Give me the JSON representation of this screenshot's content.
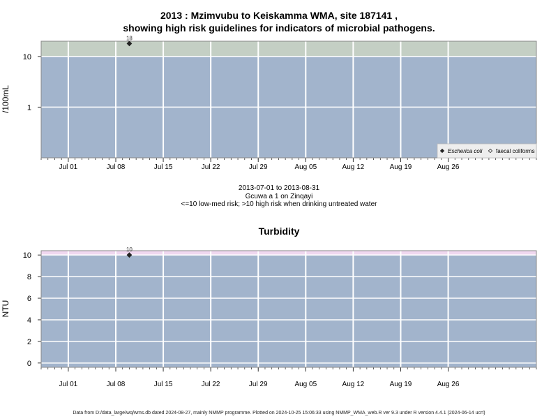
{
  "chart_data": [
    {
      "type": "scatter",
      "title_line1": "2013 : Mzimvubu to Keiskamma WMA, site 187141 ,",
      "title_line2": "showing high risk guidelines for indicators of microbial pathogens.",
      "ylabel": "/100mL",
      "y_scale": "log",
      "ylim": [
        0.1,
        20
      ],
      "yticks": [
        {
          "value": 1,
          "label": "1"
        },
        {
          "value": 10,
          "label": "10"
        }
      ],
      "xlim": [
        "2013-06-27",
        "2013-09-08"
      ],
      "xticks": [
        {
          "date": "2013-07-01",
          "label": "Jul 01"
        },
        {
          "date": "2013-07-08",
          "label": "Jul 08"
        },
        {
          "date": "2013-07-15",
          "label": "Jul 15"
        },
        {
          "date": "2013-07-22",
          "label": "Jul 22"
        },
        {
          "date": "2013-07-29",
          "label": "Jul 29"
        },
        {
          "date": "2013-08-05",
          "label": "Aug 05"
        },
        {
          "date": "2013-08-12",
          "label": "Aug 12"
        },
        {
          "date": "2013-08-19",
          "label": "Aug 19"
        },
        {
          "date": "2013-08-26",
          "label": "Aug 26"
        }
      ],
      "bands": [
        {
          "from": 0.1,
          "to": 10,
          "color": "#a2b4cc"
        },
        {
          "from": 10,
          "to": 20,
          "color": "#c4cfc4"
        }
      ],
      "series": [
        {
          "name": "Escherica coli",
          "marker": "filled-diamond",
          "points": [
            {
              "x": "2013-07-10",
              "y": 18,
              "label": "18"
            }
          ]
        },
        {
          "name": "faecal coliforms",
          "marker": "open-diamond",
          "points": []
        }
      ],
      "legend": "bottom-right",
      "xlabel_lines": [
        "2013-07-01 to 2013-08-31",
        "Gcuwa a 1 on Zinqayi",
        "<=10 low-med risk; >10 high risk when drinking untreated water"
      ]
    },
    {
      "type": "scatter",
      "title": "Turbidity",
      "ylabel": "NTU",
      "ylim": [
        -0.4,
        10.4
      ],
      "yticks": [
        {
          "value": 0,
          "label": "0"
        },
        {
          "value": 2,
          "label": "2"
        },
        {
          "value": 4,
          "label": "4"
        },
        {
          "value": 6,
          "label": "6"
        },
        {
          "value": 8,
          "label": "8"
        },
        {
          "value": 10,
          "label": "10"
        }
      ],
      "xlim": [
        "2013-06-27",
        "2013-09-08"
      ],
      "xticks": [
        {
          "date": "2013-07-01",
          "label": "Jul 01"
        },
        {
          "date": "2013-07-08",
          "label": "Jul 08"
        },
        {
          "date": "2013-07-15",
          "label": "Jul 15"
        },
        {
          "date": "2013-07-22",
          "label": "Jul 22"
        },
        {
          "date": "2013-07-29",
          "label": "Jul 29"
        },
        {
          "date": "2013-08-05",
          "label": "Aug 05"
        },
        {
          "date": "2013-08-12",
          "label": "Aug 12"
        },
        {
          "date": "2013-08-19",
          "label": "Aug 19"
        },
        {
          "date": "2013-08-26",
          "label": "Aug 26"
        }
      ],
      "bands": [
        {
          "from": -0.4,
          "to": 10,
          "color": "#a2b4cc"
        },
        {
          "from": 10,
          "to": 10.4,
          "color": "#f0d8f0"
        }
      ],
      "series": [
        {
          "name": "",
          "marker": "filled-diamond",
          "points": [
            {
              "x": "2013-07-10",
              "y": 10,
              "label": "10"
            }
          ]
        }
      ]
    }
  ],
  "footer": "Data from D:/data_large/wq/wms.db dated 2024-08-27, mainly NMMP programme. Plotted on 2024-10-25 15:06:33 using NMMP_WMA_web.R ver 9.3 under R version 4.4.1 (2024-06-14 ucrt)"
}
